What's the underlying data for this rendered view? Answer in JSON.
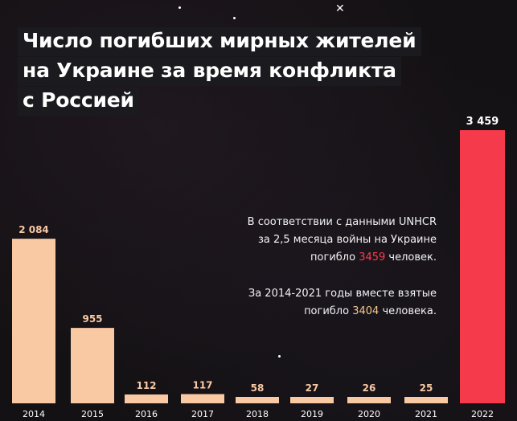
{
  "title_lines": [
    "Число погибших мирных жителей",
    "на Украине за время конфликта",
    "с Россией"
  ],
  "annotation": {
    "p1_l1": "В соответствии с данными UNHCR",
    "p1_l2": "за 2,5 месяца войны на Украине",
    "p1_l3_a": "погибло ",
    "p1_l3_b": "3459",
    "p1_l3_c": " человек.",
    "p2_l1": "За 2014-2021 годы вместе взятые",
    "p2_l2_a": "погибло ",
    "p2_l2_b": "3404",
    "p2_l2_c": " человека."
  },
  "colors": {
    "background": "#141114",
    "bar_past": "#f9c9a4",
    "bar_2022": "#f43a4b",
    "label_past": "#3a2a22",
    "label_2022": "#ffffff",
    "highlight_red": "#ff3b4d",
    "highlight_orange": "#f5c88c"
  },
  "chart_data": {
    "type": "bar",
    "categories": [
      "2014",
      "2015",
      "2016",
      "2017",
      "2018",
      "2019",
      "2020",
      "2021",
      "2022"
    ],
    "values": [
      2084,
      955,
      112,
      117,
      58,
      27,
      26,
      25,
      3459
    ],
    "value_labels": [
      "2 084",
      "955",
      "112",
      "117",
      "58",
      "27",
      "26",
      "25",
      "3 459"
    ],
    "title": "Число погибших мирных жителей на Украине за время конфликта с Россией",
    "xlabel": "",
    "ylabel": "",
    "grid": false,
    "legend": "none"
  }
}
